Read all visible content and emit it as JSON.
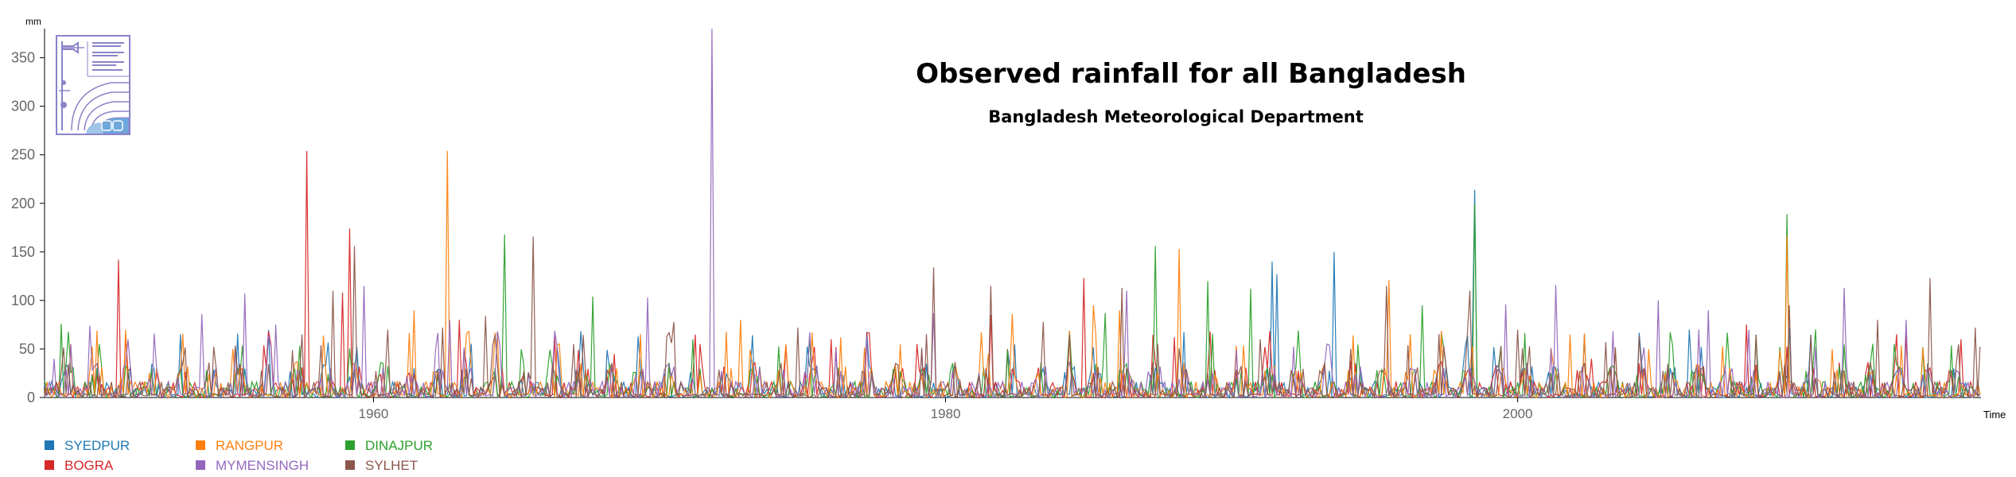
{
  "chart_data": {
    "type": "line",
    "title": "Observed rainfall for all Bangladesh",
    "subtitle": "Bangladesh Meteorological Department",
    "ylabel": "mm",
    "xlabel": "Time",
    "ylim": [
      0,
      380
    ],
    "yticks": [
      0,
      50,
      100,
      150,
      200,
      250,
      300,
      350
    ],
    "xlim": [
      1948.5,
      2016.2
    ],
    "xticks": [
      1960,
      1980,
      2000
    ],
    "series": [
      {
        "name": "SYEDPUR",
        "color": "#1f77b4",
        "peaks": [
          [
            1991.4,
            140
          ],
          [
            1991.6,
            127
          ],
          [
            1993.6,
            150
          ],
          [
            1998.5,
            214
          ],
          [
            2006.0,
            70
          ],
          [
            2009.5,
            72
          ]
        ]
      },
      {
        "name": "BOGRA",
        "color": "#d62728",
        "peaks": [
          [
            1951.1,
            142
          ],
          [
            1957.7,
            254
          ],
          [
            1958.9,
            108
          ],
          [
            1959.2,
            174
          ],
          [
            1963.0,
            80
          ],
          [
            1968.4,
            45
          ],
          [
            1976.0,
            60
          ],
          [
            1979.0,
            55
          ],
          [
            1981.6,
            85
          ],
          [
            1984.8,
            123
          ],
          [
            1988.0,
            62
          ],
          [
            1994.2,
            38
          ],
          [
            2002.6,
            40
          ],
          [
            2008.0,
            75
          ],
          [
            2013.6,
            65
          ],
          [
            2015.5,
            60
          ]
        ]
      },
      {
        "name": "DINAJPUR",
        "color": "#2ca02c",
        "peaks": [
          [
            1949.1,
            76
          ],
          [
            1964.6,
            168
          ],
          [
            1967.7,
            104
          ],
          [
            1971.2,
            60
          ],
          [
            1985.6,
            87
          ],
          [
            1987.3,
            156
          ],
          [
            1989.2,
            120
          ],
          [
            1990.7,
            112
          ],
          [
            1996.7,
            95
          ],
          [
            1998.5,
            200
          ],
          [
            2009.4,
            189
          ],
          [
            2010.4,
            70
          ],
          [
            2013.2,
            55
          ]
        ]
      },
      {
        "name": "RANGPUR",
        "color": "#ff7f0e",
        "peaks": [
          [
            1955.1,
            50
          ],
          [
            1961.4,
            90
          ],
          [
            1962.6,
            254
          ],
          [
            1966.5,
            55
          ],
          [
            1972.8,
            80
          ],
          [
            1976.3,
            62
          ],
          [
            1981.5,
            45
          ],
          [
            1982.3,
            86
          ],
          [
            1985.2,
            95
          ],
          [
            1986.1,
            90
          ],
          [
            1988.2,
            153
          ],
          [
            1995.5,
            121
          ],
          [
            2001.8,
            65
          ],
          [
            2004.6,
            50
          ],
          [
            2009.4,
            166
          ],
          [
            2011.0,
            50
          ]
        ]
      },
      {
        "name": "MYMENSINGH",
        "color": "#9467bd",
        "peaks": [
          [
            1948.8,
            40
          ],
          [
            1950.1,
            74
          ],
          [
            1951.4,
            60
          ],
          [
            1954.0,
            86
          ],
          [
            1955.5,
            107
          ],
          [
            1956.6,
            75
          ],
          [
            1959.7,
            115
          ],
          [
            1962.7,
            80
          ],
          [
            1969.6,
            103
          ],
          [
            1971.8,
            380
          ],
          [
            1979.6,
            87
          ],
          [
            1986.3,
            110
          ],
          [
            1993.3,
            55
          ],
          [
            1999.6,
            96
          ],
          [
            2001.3,
            116
          ],
          [
            2004.9,
            100
          ],
          [
            2006.7,
            90
          ],
          [
            2008.1,
            70
          ],
          [
            2011.4,
            113
          ],
          [
            2013.6,
            80
          ]
        ]
      },
      {
        "name": "SYLHET",
        "color": "#8c564b",
        "peaks": [
          [
            1957.5,
            65
          ],
          [
            1958.6,
            110
          ],
          [
            1959.3,
            156
          ],
          [
            1960.5,
            70
          ],
          [
            1962.4,
            72
          ],
          [
            1963.9,
            84
          ],
          [
            1965.6,
            166
          ],
          [
            1967.0,
            55
          ],
          [
            1970.5,
            78
          ],
          [
            1974.8,
            72
          ],
          [
            1979.6,
            134
          ],
          [
            1981.6,
            115
          ],
          [
            1983.4,
            78
          ],
          [
            1986.2,
            113
          ],
          [
            1991.0,
            60
          ],
          [
            1995.4,
            115
          ],
          [
            1998.3,
            110
          ],
          [
            2000.0,
            70
          ],
          [
            2003.1,
            57
          ],
          [
            2009.5,
            95
          ],
          [
            2012.6,
            80
          ],
          [
            2014.4,
            123
          ],
          [
            2016.0,
            72
          ]
        ]
      }
    ]
  }
}
